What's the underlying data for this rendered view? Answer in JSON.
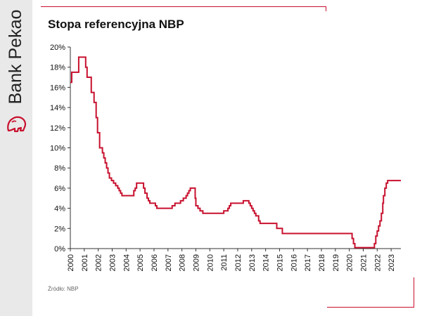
{
  "brand": {
    "name": "Bank Pekao"
  },
  "header": {
    "title": "Stopa referencyjna NBP"
  },
  "footer": {
    "source": "Źródło: NBP"
  },
  "colors": {
    "line": "#c8102e",
    "accent": "#c8102e",
    "sidebar": "#e9e9e9"
  },
  "chart_data": {
    "type": "line",
    "title": "Stopa referencyjna NBP",
    "xlabel": "",
    "ylabel": "",
    "xlim": [
      2000,
      2023.7
    ],
    "ylim": [
      0,
      20
    ],
    "y_ticks": [
      "0%",
      "2%",
      "4%",
      "6%",
      "8%",
      "10%",
      "12%",
      "14%",
      "16%",
      "18%",
      "20%"
    ],
    "x_ticks": [
      "2000",
      "2001",
      "2002",
      "2003",
      "2004",
      "2005",
      "2006",
      "2007",
      "2008",
      "2009",
      "2010",
      "2011",
      "2012",
      "2013",
      "2014",
      "2015",
      "2016",
      "2017",
      "2018",
      "2019",
      "2020",
      "2021",
      "2022",
      "2023"
    ],
    "grid": false,
    "legend": "none",
    "step": true,
    "series": [
      {
        "points": [
          [
            2000.0,
            16.5
          ],
          [
            2000.1,
            17.5
          ],
          [
            2000.6,
            19.0
          ],
          [
            2001.1,
            18.0
          ],
          [
            2001.2,
            17.0
          ],
          [
            2001.5,
            15.5
          ],
          [
            2001.7,
            14.5
          ],
          [
            2001.85,
            13.0
          ],
          [
            2001.95,
            11.5
          ],
          [
            2002.1,
            10.0
          ],
          [
            2002.3,
            9.5
          ],
          [
            2002.4,
            9.0
          ],
          [
            2002.5,
            8.5
          ],
          [
            2002.6,
            8.0
          ],
          [
            2002.7,
            7.5
          ],
          [
            2002.8,
            7.0
          ],
          [
            2002.95,
            6.75
          ],
          [
            2003.1,
            6.5
          ],
          [
            2003.25,
            6.25
          ],
          [
            2003.4,
            6.0
          ],
          [
            2003.5,
            5.75
          ],
          [
            2003.6,
            5.5
          ],
          [
            2003.7,
            5.25
          ],
          [
            2004.5,
            5.25
          ],
          [
            2004.55,
            5.75
          ],
          [
            2004.65,
            6.0
          ],
          [
            2004.75,
            6.5
          ],
          [
            2005.25,
            6.0
          ],
          [
            2005.35,
            5.5
          ],
          [
            2005.5,
            5.0
          ],
          [
            2005.6,
            4.75
          ],
          [
            2005.7,
            4.5
          ],
          [
            2006.1,
            4.25
          ],
          [
            2006.2,
            4.0
          ],
          [
            2007.3,
            4.25
          ],
          [
            2007.5,
            4.5
          ],
          [
            2007.9,
            4.75
          ],
          [
            2008.1,
            5.0
          ],
          [
            2008.3,
            5.25
          ],
          [
            2008.4,
            5.5
          ],
          [
            2008.5,
            5.75
          ],
          [
            2008.6,
            6.0
          ],
          [
            2008.9,
            6.0
          ],
          [
            2008.95,
            5.0
          ],
          [
            2009.0,
            4.25
          ],
          [
            2009.15,
            4.0
          ],
          [
            2009.3,
            3.75
          ],
          [
            2009.5,
            3.5
          ],
          [
            2011.0,
            3.75
          ],
          [
            2011.3,
            4.0
          ],
          [
            2011.4,
            4.25
          ],
          [
            2011.5,
            4.5
          ],
          [
            2012.4,
            4.75
          ],
          [
            2012.8,
            4.5
          ],
          [
            2012.9,
            4.25
          ],
          [
            2013.0,
            4.0
          ],
          [
            2013.1,
            3.75
          ],
          [
            2013.2,
            3.5
          ],
          [
            2013.3,
            3.25
          ],
          [
            2013.5,
            2.75
          ],
          [
            2013.6,
            2.5
          ],
          [
            2014.8,
            2.0
          ],
          [
            2015.2,
            1.5
          ],
          [
            2020.2,
            1.0
          ],
          [
            2020.3,
            0.5
          ],
          [
            2020.4,
            0.1
          ],
          [
            2021.8,
            0.5
          ],
          [
            2021.9,
            1.25
          ],
          [
            2022.0,
            1.75
          ],
          [
            2022.1,
            2.25
          ],
          [
            2022.2,
            2.75
          ],
          [
            2022.3,
            3.5
          ],
          [
            2022.4,
            4.5
          ],
          [
            2022.45,
            5.25
          ],
          [
            2022.55,
            6.0
          ],
          [
            2022.65,
            6.5
          ],
          [
            2022.75,
            6.75
          ],
          [
            2023.7,
            6.75
          ]
        ]
      }
    ]
  }
}
